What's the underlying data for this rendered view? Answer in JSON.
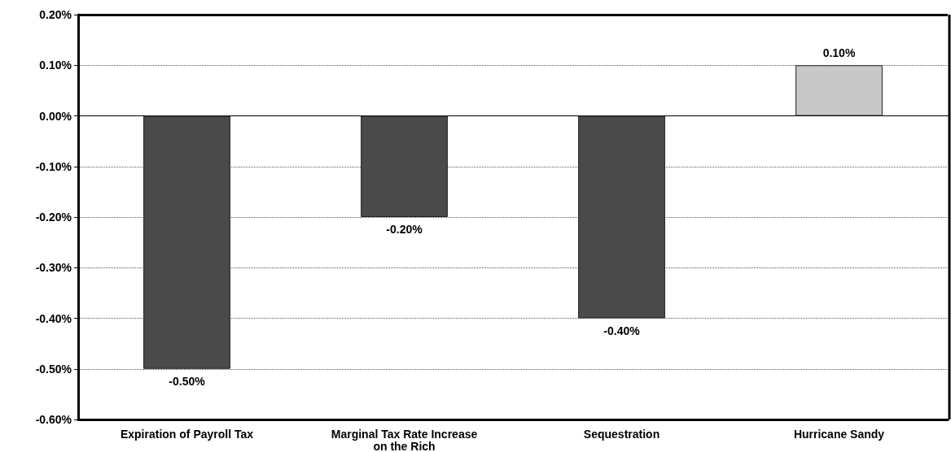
{
  "chart_data": {
    "type": "bar",
    "categories": [
      "Expiration of Payroll Tax",
      "Marginal Tax Rate Increase\non the Rich",
      "Sequestration",
      "Hurricane Sandy"
    ],
    "values": [
      -0.5,
      -0.2,
      -0.4,
      0.1
    ],
    "colors": [
      "#4a4a4a",
      "#4a4a4a",
      "#4a4a4a",
      "#c8c8c8"
    ],
    "value_labels": [
      "-0.50%",
      "-0.20%",
      "-0.40%",
      "0.10%"
    ],
    "ylim": [
      -0.6,
      0.2
    ],
    "yticks": [
      {
        "value": -0.6,
        "label": "-0.60%"
      },
      {
        "value": -0.5,
        "label": "-0.50%"
      },
      {
        "value": -0.4,
        "label": "-0.40%"
      },
      {
        "value": -0.3,
        "label": "-0.30%"
      },
      {
        "value": -0.2,
        "label": "-0.20%"
      },
      {
        "value": -0.1,
        "label": "-0.10%"
      },
      {
        "value": 0,
        "label": "0.00%"
      },
      {
        "value": 0.1,
        "label": "0.10%"
      },
      {
        "value": 0.2,
        "label": "0.20%"
      }
    ],
    "grid": "y"
  }
}
